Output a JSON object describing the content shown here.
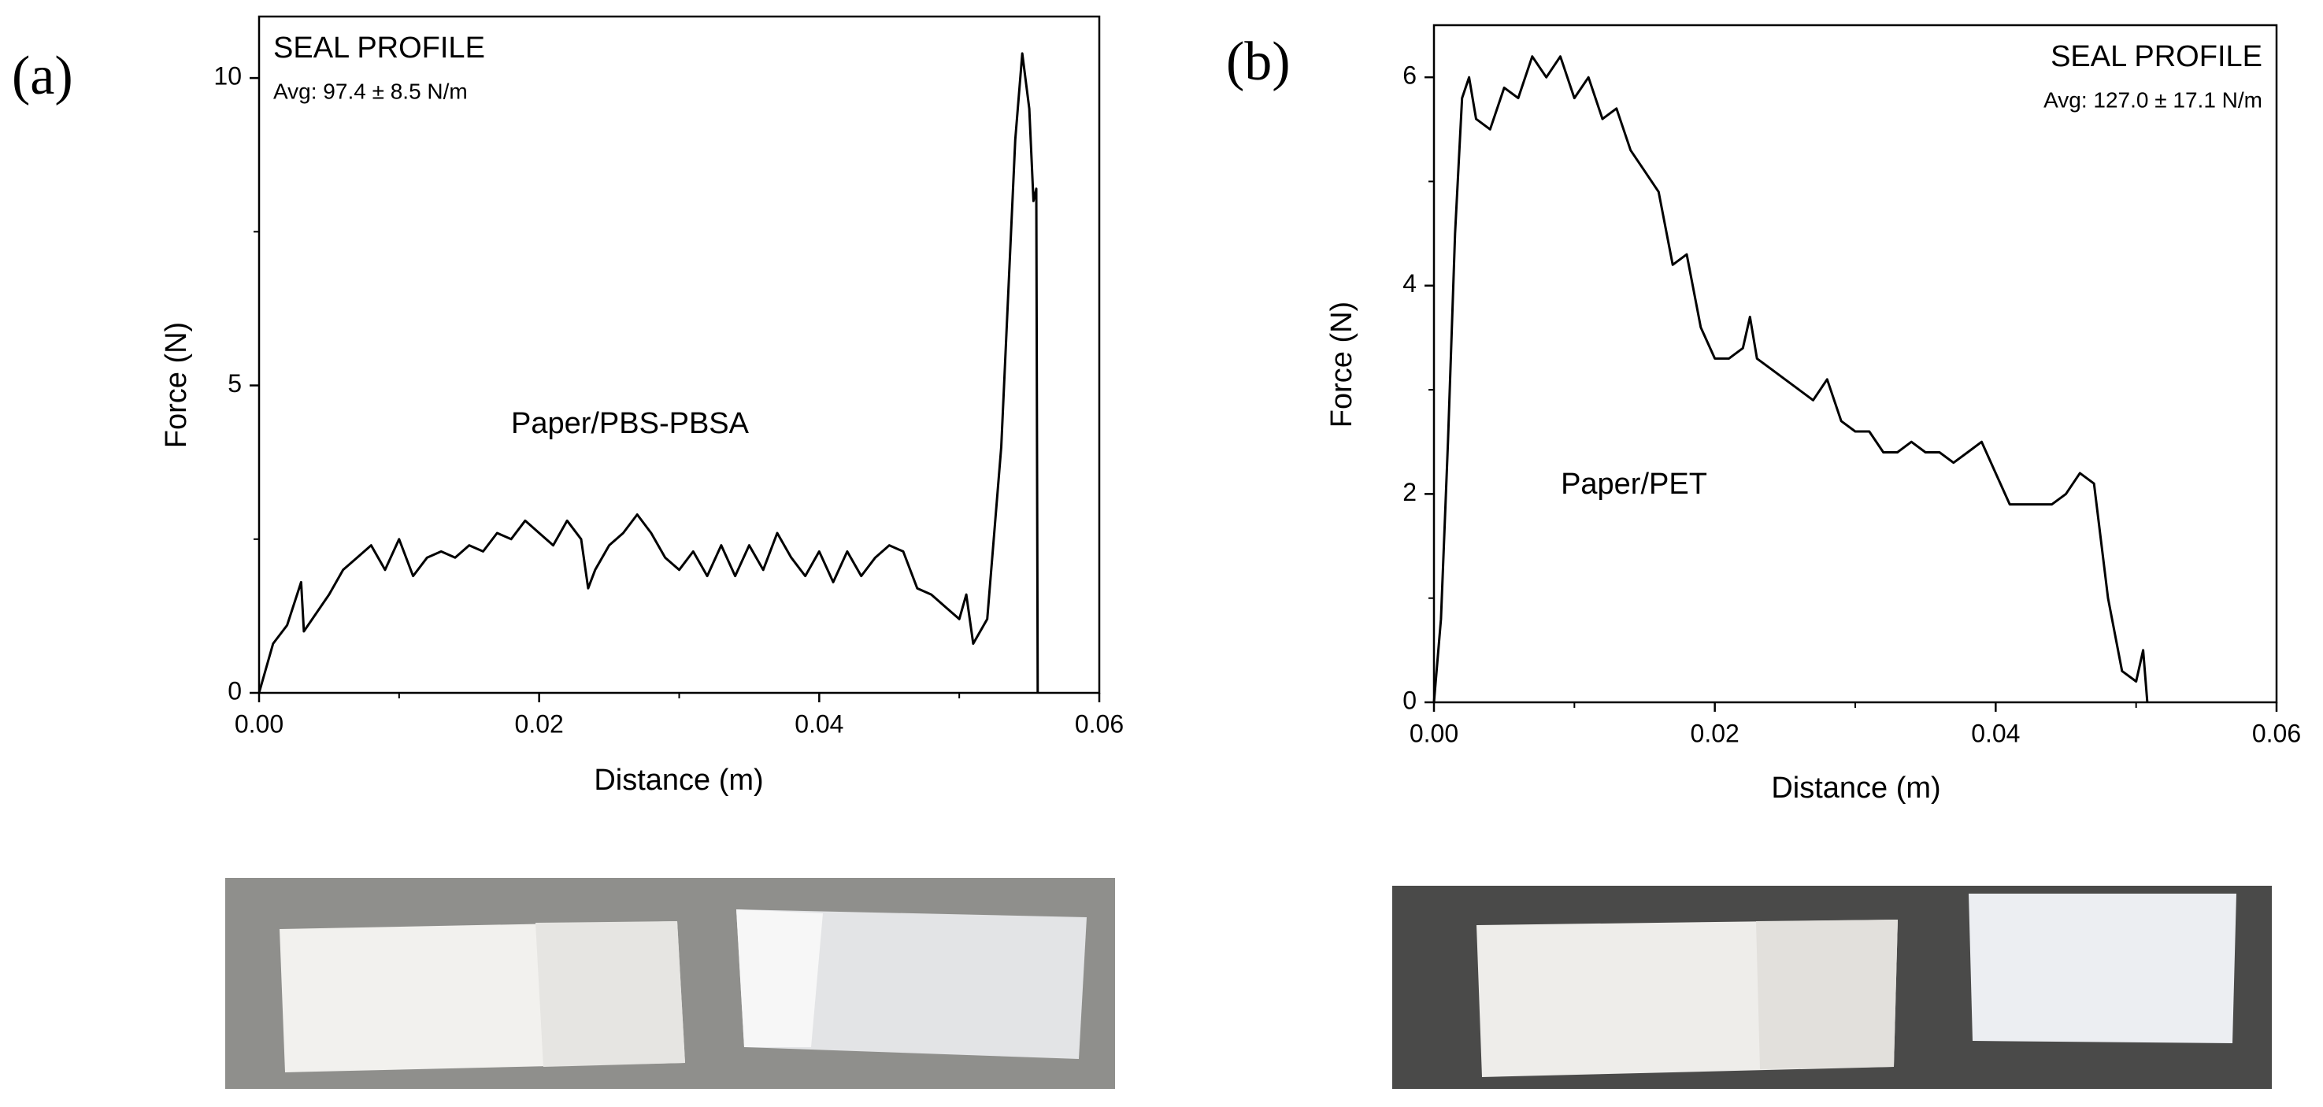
{
  "chart_data": [
    {
      "type": "line",
      "panel_label": "(a)",
      "title": "SEAL PROFILE",
      "subtitle": "Avg: 97.4 ± 8.5 N/m",
      "title_loc": "upper left",
      "annotation": "Paper/PBS-PBSA",
      "xlabel": "Distance (m)",
      "ylabel": "Force (N)",
      "color": "#000000",
      "x": [
        0,
        0.001,
        0.002,
        0.003,
        0.0032,
        0.005,
        0.006,
        0.007,
        0.008,
        0.009,
        0.01,
        0.011,
        0.012,
        0.013,
        0.014,
        0.015,
        0.016,
        0.017,
        0.018,
        0.019,
        0.02,
        0.021,
        0.022,
        0.023,
        0.0235,
        0.024,
        0.025,
        0.026,
        0.027,
        0.028,
        0.029,
        0.03,
        0.031,
        0.032,
        0.033,
        0.034,
        0.035,
        0.036,
        0.037,
        0.038,
        0.039,
        0.04,
        0.041,
        0.042,
        0.043,
        0.044,
        0.045,
        0.046,
        0.047,
        0.048,
        0.049,
        0.05,
        0.0505,
        0.051,
        0.052,
        0.053,
        0.054,
        0.0545,
        0.055,
        0.0553,
        0.0555,
        0.0556
      ],
      "values": [
        0,
        0.8,
        1.1,
        1.8,
        1.0,
        1.6,
        2.0,
        2.2,
        2.4,
        2.0,
        2.5,
        1.9,
        2.2,
        2.3,
        2.2,
        2.4,
        2.3,
        2.6,
        2.5,
        2.8,
        2.6,
        2.4,
        2.8,
        2.5,
        1.7,
        2.0,
        2.4,
        2.6,
        2.9,
        2.6,
        2.2,
        2.0,
        2.3,
        1.9,
        2.4,
        1.9,
        2.4,
        2.0,
        2.6,
        2.2,
        1.9,
        2.3,
        1.8,
        2.3,
        1.9,
        2.2,
        2.4,
        2.3,
        1.7,
        1.6,
        1.4,
        1.2,
        1.6,
        0.8,
        1.2,
        4.0,
        9.0,
        10.4,
        9.5,
        8.0,
        8.2,
        0
      ],
      "xlim": [
        0,
        0.06
      ],
      "xticks": [
        {
          "value": 0,
          "label": "0.00"
        },
        0.02,
        0.04,
        0.06
      ],
      "ylim": [
        0,
        11
      ],
      "yticks": [
        0,
        5,
        10
      ]
    },
    {
      "type": "line",
      "panel_label": "(b)",
      "title": "SEAL PROFILE",
      "subtitle": "Avg: 127.0 ± 17.1 N/m",
      "title_loc": "upper right",
      "annotation": "Paper/PET",
      "xlabel": "Distance (m)",
      "ylabel": "Force (N)",
      "color": "#000000",
      "x": [
        0,
        0.0005,
        0.001,
        0.0015,
        0.002,
        0.0025,
        0.003,
        0.004,
        0.005,
        0.006,
        0.007,
        0.008,
        0.009,
        0.01,
        0.011,
        0.012,
        0.013,
        0.014,
        0.015,
        0.016,
        0.017,
        0.018,
        0.019,
        0.02,
        0.021,
        0.022,
        0.0225,
        0.023,
        0.024,
        0.025,
        0.026,
        0.027,
        0.028,
        0.029,
        0.03,
        0.031,
        0.032,
        0.033,
        0.034,
        0.035,
        0.036,
        0.037,
        0.038,
        0.039,
        0.04,
        0.041,
        0.042,
        0.043,
        0.044,
        0.045,
        0.046,
        0.047,
        0.048,
        0.049,
        0.05,
        0.0505,
        0.0508
      ],
      "values": [
        0,
        0.8,
        2.5,
        4.5,
        5.8,
        6.0,
        5.6,
        5.5,
        5.9,
        5.8,
        6.2,
        6.0,
        6.2,
        5.8,
        6.0,
        5.6,
        5.7,
        5.3,
        5.1,
        4.9,
        4.2,
        4.3,
        3.6,
        3.3,
        3.3,
        3.4,
        3.7,
        3.3,
        3.2,
        3.1,
        3.0,
        2.9,
        3.1,
        2.7,
        2.6,
        2.6,
        2.4,
        2.4,
        2.5,
        2.4,
        2.4,
        2.3,
        2.4,
        2.5,
        2.2,
        1.9,
        1.9,
        1.9,
        1.9,
        2.0,
        2.2,
        2.1,
        1.0,
        0.3,
        0.2,
        0.5,
        0
      ],
      "xlim": [
        0,
        0.06
      ],
      "xticks": [
        {
          "value": 0,
          "label": "0.00"
        },
        0.02,
        0.04,
        0.06
      ],
      "ylim": [
        0,
        6.5
      ],
      "yticks": [
        0,
        2,
        4,
        6
      ]
    }
  ]
}
